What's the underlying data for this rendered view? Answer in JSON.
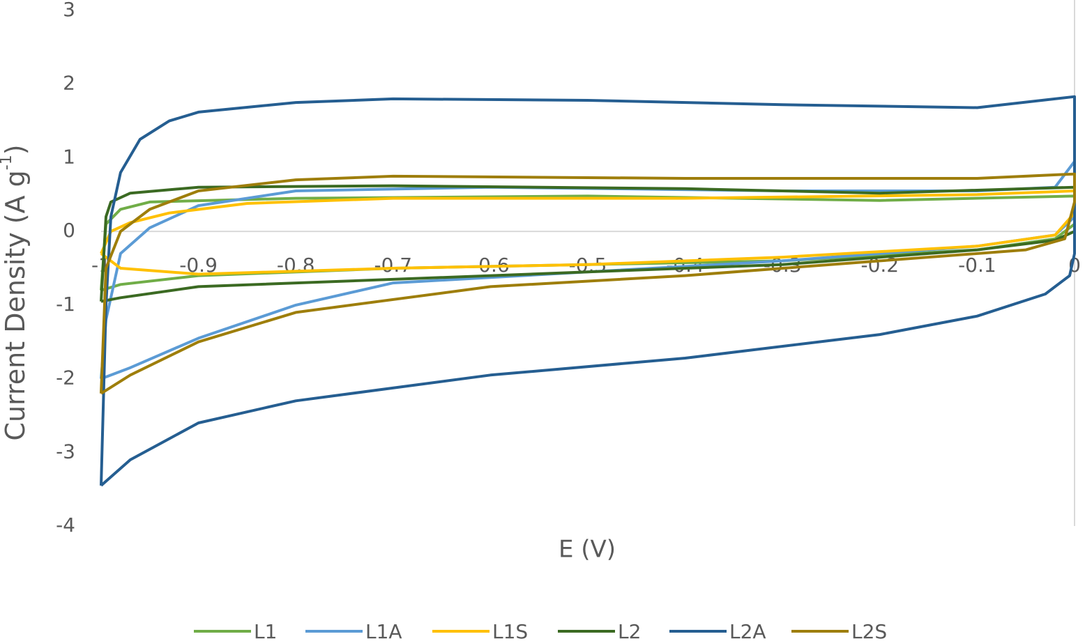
{
  "chart_data": {
    "type": "line",
    "x_label": "E (V)",
    "y_label": "Current Density (A g",
    "y_label_sup": "-1",
    "y_label_end": ")",
    "xlim": [
      -1,
      0
    ],
    "xticks": [
      -1,
      -0.9,
      -0.8,
      -0.7,
      -0.6,
      -0.5,
      -0.4,
      -0.3,
      -0.2,
      -0.1,
      0
    ],
    "ylim": [
      -4,
      3
    ],
    "yticks": [
      -4,
      -3,
      -2,
      -1,
      0,
      1,
      2,
      3
    ],
    "legend": "bottom",
    "series": [
      {
        "name": "L1",
        "color": "#70ad47",
        "x": [
          -1,
          -0.995,
          -0.98,
          -0.95,
          -0.8,
          -0.5,
          -0.2,
          0,
          0,
          -0.02,
          -0.1,
          -0.3,
          -0.5,
          -0.7,
          -0.9,
          -0.98,
          -1
        ],
        "y": [
          -0.8,
          0.1,
          0.3,
          0.4,
          0.45,
          0.48,
          0.42,
          0.48,
          0.1,
          -0.1,
          -0.25,
          -0.4,
          -0.45,
          -0.5,
          -0.6,
          -0.72,
          -0.8
        ]
      },
      {
        "name": "L1A",
        "color": "#5b9bd5",
        "x": [
          -1,
          -0.995,
          -0.98,
          -0.95,
          -0.9,
          -0.8,
          -0.6,
          -0.3,
          -0.1,
          -0.02,
          0,
          0,
          -0.02,
          -0.1,
          -0.3,
          -0.5,
          -0.7,
          -0.8,
          -0.9,
          -0.97,
          -1
        ],
        "y": [
          -2.0,
          -1.2,
          -0.3,
          0.05,
          0.35,
          0.55,
          0.6,
          0.55,
          0.55,
          0.6,
          0.95,
          0.2,
          -0.05,
          -0.2,
          -0.4,
          -0.55,
          -0.7,
          -1.0,
          -1.45,
          -1.85,
          -2.0
        ]
      },
      {
        "name": "L1S",
        "color": "#ffc000",
        "x": [
          -1,
          -0.99,
          -0.97,
          -0.93,
          -0.85,
          -0.7,
          -0.4,
          -0.1,
          0,
          0,
          -0.02,
          -0.1,
          -0.3,
          -0.5,
          -0.7,
          -0.9,
          -0.98,
          -1
        ],
        "y": [
          -0.3,
          0,
          0.12,
          0.25,
          0.38,
          0.45,
          0.45,
          0.5,
          0.55,
          0.25,
          -0.05,
          -0.2,
          -0.35,
          -0.45,
          -0.5,
          -0.58,
          -0.5,
          -0.3
        ]
      },
      {
        "name": "L2",
        "color": "#3b6a22",
        "x": [
          -1,
          -0.995,
          -0.99,
          -0.97,
          -0.9,
          -0.7,
          -0.4,
          -0.2,
          0,
          0,
          -0.02,
          -0.1,
          -0.3,
          -0.5,
          -0.7,
          -0.9,
          -0.98,
          -1
        ],
        "y": [
          -0.95,
          0.2,
          0.4,
          0.52,
          0.6,
          0.62,
          0.58,
          0.52,
          0.6,
          0.0,
          -0.12,
          -0.25,
          -0.45,
          -0.55,
          -0.65,
          -0.75,
          -0.9,
          -0.95
        ]
      },
      {
        "name": "L2A",
        "color": "#255e91",
        "x": [
          -1,
          -0.995,
          -0.99,
          -0.98,
          -0.96,
          -0.93,
          -0.9,
          -0.8,
          -0.7,
          -0.5,
          -0.3,
          -0.1,
          0,
          0,
          0,
          -0.005,
          -0.03,
          -0.1,
          -0.2,
          -0.4,
          -0.6,
          -0.8,
          -0.9,
          -0.97,
          -1
        ],
        "y": [
          -3.45,
          -1,
          0.2,
          0.8,
          1.25,
          1.5,
          1.62,
          1.75,
          1.8,
          1.78,
          1.72,
          1.68,
          1.83,
          0.9,
          -0.3,
          -0.6,
          -0.85,
          -1.15,
          -1.4,
          -1.72,
          -1.95,
          -2.3,
          -2.6,
          -3.1,
          -3.45
        ]
      },
      {
        "name": "L2S",
        "color": "#9e7e0a",
        "x": [
          -1,
          -0.995,
          -0.98,
          -0.95,
          -0.9,
          -0.8,
          -0.7,
          -0.4,
          -0.1,
          0,
          0,
          -0.01,
          -0.05,
          -0.2,
          -0.4,
          -0.6,
          -0.8,
          -0.9,
          -0.97,
          -1
        ],
        "y": [
          -2.2,
          -0.5,
          0,
          0.3,
          0.55,
          0.7,
          0.75,
          0.72,
          0.72,
          0.78,
          0.4,
          -0.1,
          -0.25,
          -0.4,
          -0.6,
          -0.75,
          -1.1,
          -1.5,
          -1.95,
          -2.2
        ]
      }
    ]
  }
}
